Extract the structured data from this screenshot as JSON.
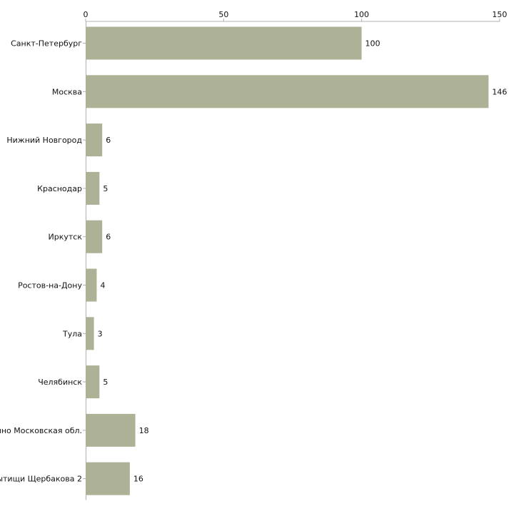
{
  "chart_data": {
    "type": "bar",
    "orientation": "horizontal",
    "title": "",
    "xlabel": "",
    "ylabel": "",
    "xlim": [
      0,
      150
    ],
    "ticks": [
      0,
      50,
      100,
      150
    ],
    "tick_labels": [
      "0",
      "50",
      "100",
      "150"
    ],
    "axis_position": "top",
    "grid": false,
    "bar_color": "#adb196",
    "categories": [
      "Санкт-Петербург",
      "Москва",
      "Нижний Новгород",
      "Краснодар",
      "Иркутск",
      "Ростов-на-Дону",
      "Тула",
      "Челябинск",
      "ино Московская обл.",
      "ытищи Щербакова 2"
    ],
    "values": [
      100,
      146,
      6,
      5,
      6,
      4,
      3,
      5,
      18,
      16
    ],
    "value_labels": [
      "100",
      "146",
      "6",
      "5",
      "6",
      "4",
      "3",
      "5",
      "18",
      "16"
    ]
  }
}
